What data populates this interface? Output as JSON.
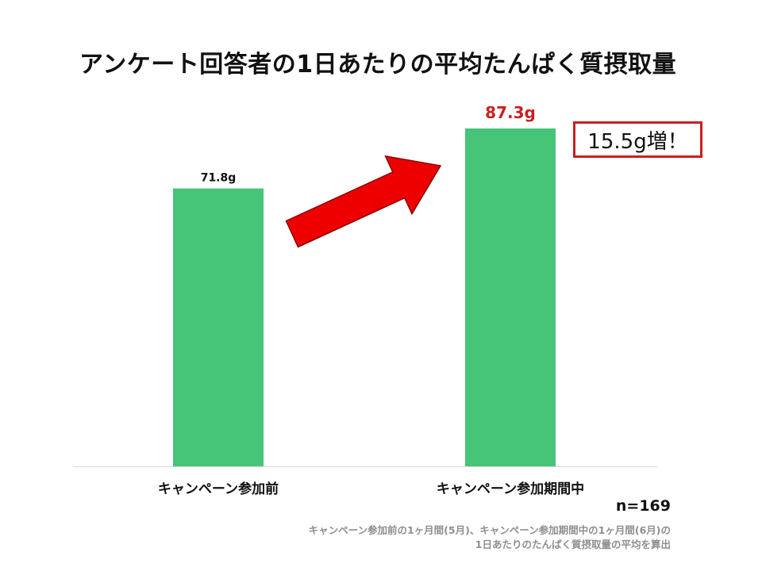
{
  "chart_data": {
    "type": "bar",
    "title": "アンケート回答者の1日あたりの平均たんぱく質摂取量",
    "categories": [
      "キャンペーン参加前",
      "キャンペーン参加期間中"
    ],
    "values": [
      71.8,
      87.3
    ],
    "data_labels": [
      "71.8g",
      "87.3g"
    ],
    "unit": "g",
    "ylim": [
      0,
      100
    ],
    "grid": false,
    "bar_color": "#46c478",
    "highlight_label_color": "#cc1f1f",
    "annotation": "15.5g増！",
    "arrow_color": "#ee0000"
  },
  "notes": {
    "sample_size": "n=169",
    "footnote_lines": [
      "キャンペーン参加前の1ヶ月間(5月)、キャンペーン参加期間中の1ヶ月間(6月)の",
      "1日あたりのたんぱく質摂取量の平均を算出"
    ]
  }
}
